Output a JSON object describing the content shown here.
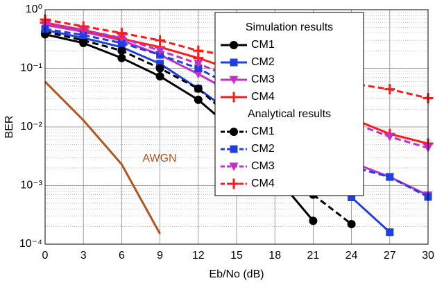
{
  "chart_data": {
    "type": "line",
    "xlabel": "Eb/No (dB)",
    "ylabel": "BER",
    "log_y": true,
    "grid": true,
    "minor_grid": true,
    "legend": "upper right",
    "x": [
      0,
      3,
      6,
      9,
      12,
      15,
      18,
      21,
      24,
      27,
      30
    ],
    "xlim": [
      0,
      30
    ],
    "xticks": [
      0,
      3,
      6,
      9,
      12,
      15,
      18,
      21,
      24,
      27,
      30
    ],
    "ylim": [
      0.0001,
      1
    ],
    "yticks": [
      {
        "value": 0.0001,
        "label": "10⁻⁴"
      },
      {
        "value": 0.001,
        "label": "10⁻³"
      },
      {
        "value": 0.01,
        "label": "10⁻²"
      },
      {
        "value": 0.1,
        "label": "10⁻¹"
      },
      {
        "value": 1,
        "label": "10⁰"
      }
    ],
    "groups": [
      {
        "title": "Simulation results",
        "line_style": "solid",
        "series": [
          {
            "name": "CM1",
            "color": "#000000",
            "marker": "circle",
            "values": [
              0.38,
              0.27,
              0.15,
              0.073,
              0.029,
              0.008,
              0.0015,
              0.00025,
              null,
              null,
              null
            ]
          },
          {
            "name": "CM2",
            "color": "#1f3fe0",
            "marker": "square",
            "values": [
              0.45,
              0.33,
              0.23,
              0.12,
              0.045,
              0.015,
              0.005,
              0.002,
              0.00063,
              0.00016,
              null
            ]
          },
          {
            "name": "CM3",
            "color": "#c030c8",
            "marker": "triangle-down",
            "values": [
              0.55,
              0.42,
              0.3,
              0.17,
              0.08,
              0.035,
              0.015,
              0.006,
              0.0025,
              0.0014,
              0.00068
            ]
          },
          {
            "name": "CM4",
            "color": "#ff1a1a",
            "marker": "plus",
            "values": [
              0.6,
              0.45,
              0.32,
              0.23,
              0.15,
              0.09,
              0.05,
              0.025,
              0.014,
              0.0076,
              0.0052
            ]
          }
        ]
      },
      {
        "title": "Analytical results",
        "line_style": "dashed",
        "series": [
          {
            "name": "CM1",
            "color": "#000000",
            "marker": "circle",
            "values": [
              0.42,
              0.3,
              0.2,
              0.1,
              0.045,
              0.012,
              0.003,
              0.0007,
              0.00022,
              null,
              null
            ]
          },
          {
            "name": "CM2",
            "color": "#1f3fe0",
            "marker": "square",
            "values": [
              0.47,
              0.37,
              0.27,
              0.17,
              0.1,
              0.045,
              0.018,
              0.007,
              0.0021,
              0.0014,
              0.00064
            ]
          },
          {
            "name": "CM3",
            "color": "#c030c8",
            "marker": "triangle-down",
            "values": [
              0.6,
              0.45,
              0.33,
              0.2,
              0.12,
              0.065,
              0.035,
              0.02,
              0.012,
              0.0068,
              0.0044
            ]
          },
          {
            "name": "CM4",
            "color": "#ff1a1a",
            "marker": "plus",
            "values": [
              0.68,
              0.52,
              0.4,
              0.3,
              0.2,
              0.16,
              0.11,
              0.075,
              0.055,
              0.044,
              0.031
            ]
          }
        ]
      }
    ],
    "reference_series": {
      "name": "AWGN",
      "color": "#b3541e",
      "values": [
        0.059,
        0.013,
        0.0023,
        0.00015,
        null,
        null,
        null,
        null,
        null,
        null,
        null
      ]
    }
  }
}
